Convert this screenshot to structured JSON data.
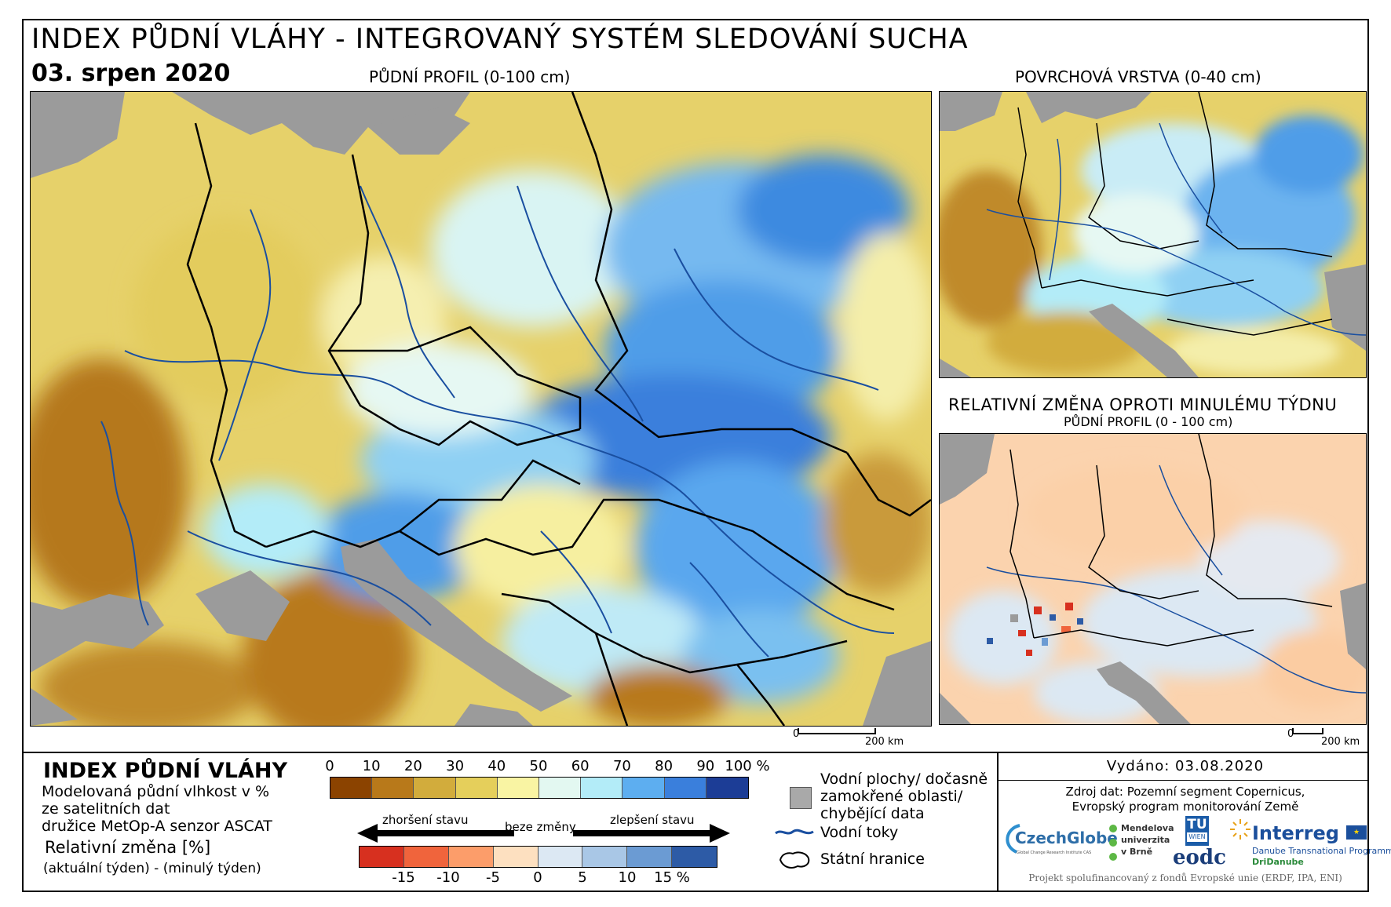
{
  "header": {
    "title": "INDEX PŮDNÍ VLÁHY - INTEGROVANÝ SYSTÉM SLEDOVÁNÍ SUCHA",
    "date": "03. srpen 2020"
  },
  "maps": {
    "main_label": "PŮDNÍ PROFIL (0-100 cm)",
    "surface_label": "POVRCHOVÁ VRSTVA (0-40 cm)",
    "change_label": "RELATIVNÍ ZMĚNA OPROTI MINULÉMU TÝDNU",
    "change_sublabel": "PŮDNÍ PROFIL (0 - 100 cm)",
    "scalebar_zero": "0",
    "scalebar_main": "200 km",
    "scalebar_small": "200 km"
  },
  "legend": {
    "title": "INDEX PŮDNÍ VLÁHY",
    "desc_line1": "Modelovaná půdní vlhkost v %",
    "desc_line2": "ze satelitních dat",
    "desc_line3": "družice MetOp-A senzor ASCAT",
    "rel_title": "Relativní změna [%]",
    "rel_sub": "(aktuální týden) - (minulý týden)",
    "index_ticks": [
      "0",
      "10",
      "20",
      "30",
      "40",
      "50",
      "60",
      "70",
      "80",
      "90",
      "100 %"
    ],
    "index_colors": [
      "#8b4300",
      "#b8791a",
      "#d2ac3c",
      "#e5cf5b",
      "#f9f4a3",
      "#e3f8f1",
      "#b3ecf8",
      "#5daef0",
      "#3a7fdc",
      "#1c3d96"
    ],
    "worse_label": "zhoršení stavu",
    "nochange_label": "beze změny",
    "better_label": "zlepšení stavu",
    "change_ticks": [
      "-15",
      "-10",
      "-5",
      "0",
      "5",
      "10",
      "15 %"
    ],
    "change_colors": [
      "#d7301f",
      "#f0643c",
      "#fc9d6a",
      "#fde0c0",
      "#dce8f3",
      "#a9c7e6",
      "#6b9bd3",
      "#2d5ba6"
    ],
    "water_label_1": "Vodní plochy/ dočasně",
    "water_label_2": "zamokřené oblasti/",
    "water_label_3": "chybějící data",
    "rivers_label": "Vodní toky",
    "borders_label": "Státní hranice"
  },
  "info": {
    "issued": "Vydáno: 03.08.2020",
    "source_line1": "Zdroj dat: Pozemní segment Copernicus,",
    "source_line2": "Evropský program monitorování Země",
    "logo_czechglobe": "CzechGlobe",
    "logo_czechglobe_sub": "Global Change Research Institute CAS",
    "logo_mendel_1": "Mendelova",
    "logo_mendel_2": "univerzita",
    "logo_mendel_3": "v Brně",
    "logo_tu_1": "TU",
    "logo_tu_2": "WIEN",
    "logo_eodc": "eodc",
    "logo_interreg": "Interreg",
    "logo_interreg_sub1": "Danube Transnational Programme",
    "logo_interreg_sub2": "DriDanube",
    "footer": "Projekt spolufinancovaný z fondů Evropské unie (ERDF, IPA, ENI)"
  }
}
